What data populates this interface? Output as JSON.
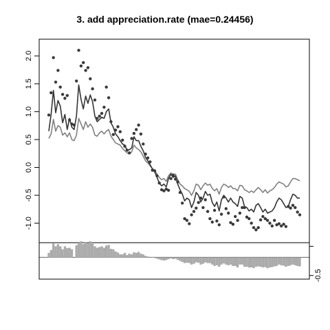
{
  "chart_data": [
    {
      "type": "line",
      "title": "3. add appreciation.rate (mae=0.24456)",
      "xlabel": "",
      "ylabel": "",
      "ylim": [
        -1.35,
        2.3
      ],
      "xlim": [
        1,
        110
      ],
      "yticks": [
        -1.0,
        -0.5,
        0.0,
        0.5,
        1.0,
        1.5,
        2.0
      ],
      "ytick_labels": [
        "-1.0",
        "-0.5",
        "0.0",
        "0.5",
        "1.0",
        "1.5",
        "2.0"
      ],
      "grid": false,
      "series": [
        {
          "style": "points",
          "color": "#3a3a3a",
          "x": [
            1,
            2,
            3,
            4,
            5,
            6,
            7,
            8,
            9,
            10,
            11,
            12,
            13,
            14,
            15,
            16,
            17,
            18,
            19,
            20,
            21,
            22,
            23,
            24,
            25,
            26,
            27,
            28,
            29,
            30,
            31,
            32,
            33,
            34,
            35,
            36,
            37,
            38,
            39,
            40,
            41,
            42,
            43,
            44,
            45,
            46,
            47,
            48,
            49,
            50,
            51,
            52,
            53,
            54,
            55,
            56,
            57,
            58,
            59,
            60,
            61,
            62,
            63,
            64,
            65,
            66,
            67,
            68,
            69,
            70,
            71,
            72,
            73,
            74,
            75,
            76,
            77,
            78,
            79,
            80,
            81,
            82,
            83,
            84,
            85,
            86,
            87,
            88,
            89,
            90,
            91,
            92,
            93,
            94,
            95,
            96,
            97,
            98,
            99,
            100,
            101,
            102,
            103,
            104,
            105,
            106,
            107,
            108,
            109,
            110
          ],
          "y": [
            0.94,
            1.34,
            1.97,
            1.53,
            1.74,
            1.44,
            1.31,
            1.24,
            1.29,
            0.85,
            0.78,
            0.76,
            1.55,
            2.1,
            1.82,
            1.88,
            1.74,
            1.79,
            1.59,
            1.41,
            1.21,
            0.88,
            0.92,
            0.97,
            1.08,
            1.44,
            1.25,
            0.82,
            0.59,
            0.67,
            0.73,
            0.64,
            0.49,
            0.38,
            0.31,
            0.26,
            0.52,
            0.61,
            0.68,
            0.76,
            0.6,
            0.42,
            0.24,
            0.17,
            0.1,
            -0.05,
            -0.06,
            -0.15,
            -0.28,
            -0.4,
            -0.42,
            -0.39,
            -0.41,
            -0.2,
            -0.14,
            -0.21,
            -0.26,
            -0.45,
            -0.64,
            -0.92,
            -0.95,
            -1.01,
            -0.85,
            -0.79,
            -0.73,
            -0.63,
            -0.55,
            -0.72,
            -0.58,
            -0.79,
            -0.92,
            -0.98,
            -0.77,
            -0.96,
            -1.03,
            -0.84,
            -0.53,
            -0.74,
            -0.82,
            -0.99,
            -1.02,
            -0.88,
            -0.95,
            -0.82,
            -0.72,
            -0.72,
            -0.89,
            -0.92,
            -1.0,
            -1.08,
            -1.12,
            -1.08,
            -0.94,
            -0.88,
            -0.92,
            -0.95,
            -1.0,
            -1.05,
            -0.95,
            -1.03,
            -1.01,
            -1.05,
            -1.02,
            -1.06,
            -0.7,
            -0.73,
            -0.68,
            -0.72,
            -0.8,
            -0.85
          ]
        },
        {
          "style": "line",
          "color": "#333333",
          "x": [
            1,
            2,
            3,
            4,
            5,
            6,
            7,
            8,
            9,
            10,
            11,
            12,
            13,
            14,
            15,
            16,
            17,
            18,
            19,
            20,
            21,
            22,
            23,
            24,
            25,
            26,
            27,
            28,
            29,
            30,
            31,
            32,
            33,
            34,
            35,
            36,
            37,
            38,
            39,
            40,
            41,
            42,
            43,
            44,
            45,
            46,
            47,
            48,
            49,
            50,
            51,
            52,
            53,
            54,
            55,
            56,
            57,
            58,
            59,
            60,
            61,
            62,
            63,
            64,
            65,
            66,
            67,
            68,
            69,
            70,
            71,
            72,
            73,
            74,
            75,
            76,
            77,
            78,
            79,
            80,
            81,
            82,
            83,
            84,
            85,
            86,
            87,
            88,
            89,
            90,
            91,
            92,
            93,
            94,
            95,
            96,
            97,
            98,
            99,
            100,
            101,
            102,
            103,
            104,
            105,
            106,
            107,
            108,
            109,
            110
          ],
          "y": [
            0.65,
            0.95,
            1.38,
            0.98,
            1.2,
            1.1,
            0.8,
            0.95,
            0.68,
            0.88,
            0.72,
            0.68,
            0.92,
            1.48,
            1.22,
            1.05,
            1.28,
            1.15,
            1.3,
            1.18,
            0.92,
            0.82,
            0.86,
            0.9,
            0.88,
            1.0,
            1.05,
            0.8,
            0.72,
            0.6,
            0.55,
            0.48,
            0.42,
            0.4,
            0.3,
            0.32,
            0.35,
            0.55,
            0.48,
            0.48,
            0.38,
            0.3,
            0.18,
            0.12,
            0.05,
            -0.03,
            -0.08,
            -0.18,
            -0.28,
            -0.33,
            -0.3,
            -0.35,
            -0.2,
            -0.12,
            -0.18,
            -0.15,
            -0.3,
            -0.4,
            -0.48,
            -0.6,
            -0.55,
            -0.58,
            -0.72,
            -0.62,
            -0.45,
            -0.5,
            -0.62,
            -0.55,
            -0.43,
            -0.5,
            -0.48,
            -0.63,
            -0.7,
            -0.62,
            -0.78,
            -0.58,
            -0.5,
            -0.55,
            -0.62,
            -0.55,
            -0.62,
            -0.65,
            -0.7,
            -0.52,
            -0.55,
            -0.7,
            -0.72,
            -0.78,
            -0.75,
            -0.8,
            -0.68,
            -0.65,
            -0.72,
            -0.8,
            -0.75,
            -0.82,
            -0.8,
            -0.78,
            -0.72,
            -0.62,
            -0.55,
            -0.58,
            -0.65,
            -0.72,
            -0.7,
            -0.58,
            -0.48,
            -0.5,
            -0.55,
            -0.55
          ]
        },
        {
          "style": "line",
          "color": "#808080",
          "x": [
            1,
            2,
            3,
            4,
            5,
            6,
            7,
            8,
            9,
            10,
            11,
            12,
            13,
            14,
            15,
            16,
            17,
            18,
            19,
            20,
            21,
            22,
            23,
            24,
            25,
            26,
            27,
            28,
            29,
            30,
            31,
            32,
            33,
            34,
            35,
            36,
            37,
            38,
            39,
            40,
            41,
            42,
            43,
            44,
            45,
            46,
            47,
            48,
            49,
            50,
            51,
            52,
            53,
            54,
            55,
            56,
            57,
            58,
            59,
            60,
            61,
            62,
            63,
            64,
            65,
            66,
            67,
            68,
            69,
            70,
            71,
            72,
            73,
            74,
            75,
            76,
            77,
            78,
            79,
            80,
            81,
            82,
            83,
            84,
            85,
            86,
            87,
            88,
            89,
            90,
            91,
            92,
            93,
            94,
            95,
            96,
            97,
            98,
            99,
            100,
            101,
            102,
            103,
            104,
            105,
            106,
            107,
            108,
            109,
            110
          ],
          "y": [
            0.52,
            0.6,
            0.86,
            0.65,
            0.75,
            0.72,
            0.58,
            0.62,
            0.55,
            0.62,
            0.5,
            0.48,
            0.58,
            0.88,
            0.78,
            0.68,
            0.82,
            0.72,
            0.78,
            0.72,
            0.58,
            0.56,
            0.62,
            0.65,
            0.6,
            0.65,
            0.68,
            0.56,
            0.5,
            0.44,
            0.42,
            0.4,
            0.34,
            0.3,
            0.26,
            0.24,
            0.28,
            0.4,
            0.35,
            0.32,
            0.28,
            0.2,
            0.12,
            0.08,
            0.03,
            -0.02,
            -0.05,
            -0.12,
            -0.18,
            -0.22,
            -0.2,
            -0.25,
            -0.15,
            -0.1,
            -0.12,
            -0.12,
            -0.22,
            -0.3,
            -0.33,
            -0.38,
            -0.4,
            -0.43,
            -0.5,
            -0.42,
            -0.3,
            -0.32,
            -0.4,
            -0.33,
            -0.28,
            -0.32,
            -0.3,
            -0.38,
            -0.42,
            -0.38,
            -0.48,
            -0.36,
            -0.3,
            -0.32,
            -0.36,
            -0.33,
            -0.38,
            -0.38,
            -0.42,
            -0.32,
            -0.33,
            -0.4,
            -0.42,
            -0.45,
            -0.42,
            -0.45,
            -0.4,
            -0.36,
            -0.4,
            -0.45,
            -0.4,
            -0.46,
            -0.42,
            -0.4,
            -0.36,
            -0.3,
            -0.26,
            -0.28,
            -0.3,
            -0.35,
            -0.33,
            -0.26,
            -0.2,
            -0.2,
            -0.22,
            -0.24
          ]
        }
      ]
    },
    {
      "type": "bar",
      "xlim": [
        1,
        110
      ],
      "ylim": [
        -0.6,
        0.4
      ],
      "yticks": [
        -0.5
      ],
      "ytick_labels": [
        "-0.5"
      ],
      "color": "#ababab",
      "x": [
        1,
        2,
        3,
        4,
        5,
        6,
        7,
        8,
        9,
        10,
        11,
        12,
        13,
        14,
        15,
        16,
        17,
        18,
        19,
        20,
        21,
        22,
        23,
        24,
        25,
        26,
        27,
        28,
        29,
        30,
        31,
        32,
        33,
        34,
        35,
        36,
        37,
        38,
        39,
        40,
        41,
        42,
        43,
        44,
        45,
        46,
        47,
        48,
        49,
        50,
        51,
        52,
        53,
        54,
        55,
        56,
        57,
        58,
        59,
        60,
        61,
        62,
        63,
        64,
        65,
        66,
        67,
        68,
        69,
        70,
        71,
        72,
        73,
        74,
        75,
        76,
        77,
        78,
        79,
        80,
        81,
        82,
        83,
        84,
        85,
        86,
        87,
        88,
        89,
        90,
        91,
        92,
        93,
        94,
        95,
        96,
        97,
        98,
        99,
        100,
        101,
        102,
        103,
        104,
        105,
        106,
        107,
        108,
        109,
        110
      ],
      "values": [
        0.12,
        0.2,
        0.38,
        0.3,
        0.36,
        0.3,
        0.22,
        0.3,
        0.25,
        0.26,
        0.22,
        0.0,
        0.33,
        0.4,
        0.44,
        0.36,
        0.42,
        0.38,
        0.44,
        0.4,
        0.3,
        0.26,
        0.28,
        0.3,
        0.26,
        0.32,
        0.34,
        0.23,
        0.22,
        0.16,
        0.13,
        0.08,
        0.08,
        0.12,
        0.06,
        0.1,
        0.08,
        0.14,
        0.12,
        0.15,
        0.1,
        0.08,
        0.04,
        0.02,
        0.0,
        -0.01,
        -0.02,
        -0.04,
        -0.06,
        -0.08,
        -0.09,
        -0.08,
        -0.05,
        -0.03,
        -0.05,
        -0.04,
        -0.07,
        -0.1,
        -0.13,
        -0.16,
        -0.15,
        -0.16,
        -0.2,
        -0.18,
        -0.14,
        -0.15,
        -0.2,
        -0.18,
        -0.14,
        -0.16,
        -0.16,
        -0.2,
        -0.24,
        -0.22,
        -0.26,
        -0.2,
        -0.17,
        -0.2,
        -0.22,
        -0.2,
        -0.24,
        -0.24,
        -0.28,
        -0.2,
        -0.2,
        -0.26,
        -0.26,
        -0.28,
        -0.28,
        -0.3,
        -0.26,
        -0.25,
        -0.26,
        -0.28,
        -0.27,
        -0.3,
        -0.28,
        -0.27,
        -0.25,
        -0.24,
        -0.2,
        -0.22,
        -0.23,
        -0.26,
        -0.24,
        -0.22,
        -0.2,
        -0.22,
        -0.24,
        -0.25
      ]
    }
  ]
}
